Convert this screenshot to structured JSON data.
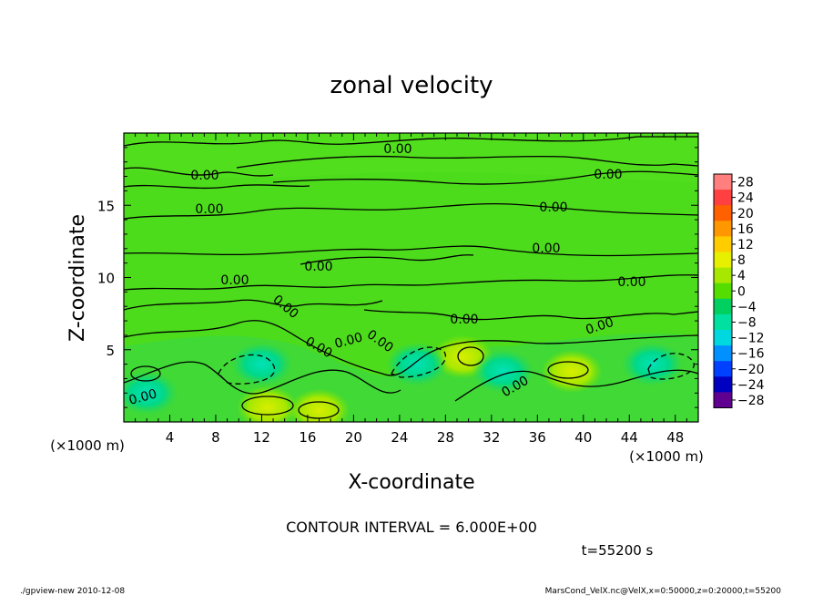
{
  "chart_data": {
    "type": "heatmap",
    "title": "zonal velocity",
    "xlabel": "X-coordinate",
    "ylabel": "Z-coordinate",
    "x_units_left": "(×1000 m)",
    "x_units_right": "(×1000 m)",
    "xlim": [
      0,
      50
    ],
    "ylim": [
      0,
      20
    ],
    "x_ticks": [
      4,
      8,
      12,
      16,
      20,
      24,
      28,
      32,
      36,
      40,
      44,
      48
    ],
    "y_ticks": [
      5,
      10,
      15
    ],
    "contour_interval_text": "CONTOUR INTERVAL = 6.000E+00",
    "time_text": "t=55200 s",
    "contour_labels": [
      "0.00",
      "0.00",
      "0.00",
      "0.00",
      "0.00",
      "0.00",
      "0.00",
      "0.00",
      "0.00",
      "0.00",
      "0.00",
      "0.00",
      "0.00",
      "0.00",
      "0.00",
      "0.00",
      "0.00"
    ],
    "colorbar": {
      "levels": [
        28,
        24,
        20,
        16,
        12,
        8,
        4,
        0,
        -4,
        -8,
        -12,
        -16,
        -20,
        -24,
        -28
      ],
      "colors": [
        "#ff7f7f",
        "#ff4040",
        "#ff6000",
        "#ff9800",
        "#ffcc00",
        "#e6f000",
        "#a8e800",
        "#55dd00",
        "#00d060",
        "#00e0a0",
        "#00d8e0",
        "#0090ff",
        "#0040ff",
        "#0000c0",
        "#600090"
      ]
    },
    "field_features": [
      {
        "x": 12.5,
        "z": 1.0,
        "value": 8,
        "kind": "max"
      },
      {
        "x": 17.0,
        "z": 0.8,
        "value": 8,
        "kind": "max"
      },
      {
        "x": 39.0,
        "z": 3.5,
        "value": 8,
        "kind": "max"
      },
      {
        "x": 29.5,
        "z": 4.5,
        "value": 8,
        "kind": "max"
      },
      {
        "x": 12.0,
        "z": 4.0,
        "value": -8,
        "kind": "min"
      },
      {
        "x": 25.5,
        "z": 4.0,
        "value": -8,
        "kind": "min"
      },
      {
        "x": 46.0,
        "z": 4.0,
        "value": -8,
        "kind": "min"
      },
      {
        "x": 33.0,
        "z": 3.5,
        "value": -8,
        "kind": "min"
      },
      {
        "x": 2.0,
        "z": 2.0,
        "value": -6,
        "kind": "min"
      }
    ]
  },
  "footer": {
    "left": "./gpview-new  2010-12-08",
    "right": "MarsCond_VelX.nc@VelX,x=0:50000,z=0:20000,t=55200"
  }
}
